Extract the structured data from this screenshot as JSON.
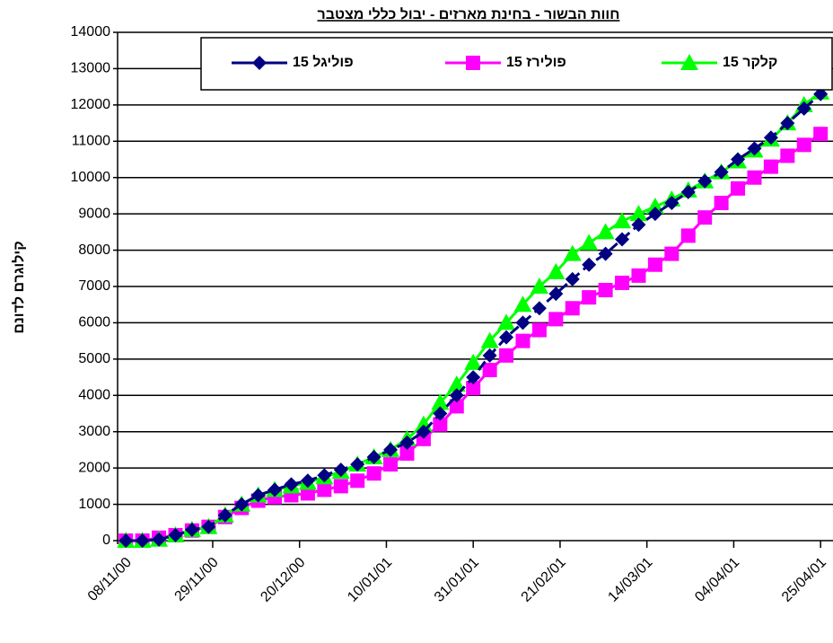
{
  "chart_data": {
    "type": "line",
    "title": "חוות הבשור - בחינת מארזים - יבול כללי מצטבר",
    "y_label": "קילוגרם לדונם",
    "x": [
      "2000-11-08",
      "2000-11-12",
      "2000-11-16",
      "2000-11-20",
      "2000-11-24",
      "2000-11-28",
      "2000-12-02",
      "2000-12-06",
      "2000-12-10",
      "2000-12-14",
      "2000-12-18",
      "2000-12-22",
      "2000-12-26",
      "2000-12-30",
      "2001-01-03",
      "2001-01-07",
      "2001-01-11",
      "2001-01-15",
      "2001-01-19",
      "2001-01-23",
      "2001-01-27",
      "2001-01-31",
      "2001-02-04",
      "2001-02-08",
      "2001-02-12",
      "2001-02-16",
      "2001-02-20",
      "2001-02-24",
      "2001-02-28",
      "2001-03-04",
      "2001-03-08",
      "2001-03-12",
      "2001-03-16",
      "2001-03-20",
      "2001-03-24",
      "2001-03-28",
      "2001-04-01",
      "2001-04-05",
      "2001-04-09",
      "2001-04-13",
      "2001-04-17",
      "2001-04-21",
      "2001-04-25"
    ],
    "series": [
      {
        "name": "פוליגל 15",
        "color": "#000080",
        "marker": "diamond",
        "dashed": true,
        "values": [
          0,
          0,
          30,
          150,
          300,
          380,
          700,
          1000,
          1250,
          1400,
          1550,
          1650,
          1800,
          1950,
          2100,
          2300,
          2500,
          2700,
          3000,
          3500,
          4000,
          4500,
          5100,
          5600,
          6000,
          6400,
          6800,
          7200,
          7600,
          7900,
          8300,
          8700,
          9000,
          9300,
          9600,
          9900,
          10150,
          10500,
          10800,
          11100,
          11500,
          11900,
          12300
        ]
      },
      {
        "name": "פולירז 15",
        "color": "#ff00ff",
        "marker": "square",
        "dashed": false,
        "values": [
          0,
          0,
          80,
          150,
          280,
          380,
          650,
          900,
          1100,
          1200,
          1250,
          1300,
          1400,
          1500,
          1650,
          1850,
          2100,
          2400,
          2800,
          3200,
          3700,
          4200,
          4700,
          5100,
          5500,
          5800,
          6100,
          6400,
          6700,
          6900,
          7100,
          7300,
          7600,
          7900,
          8400,
          8900,
          9300,
          9700,
          10000,
          10300,
          10600,
          10900,
          11200
        ]
      },
      {
        "name": "קלקר 15",
        "color": "#00ff00",
        "marker": "triangle",
        "dashed": false,
        "values": [
          0,
          0,
          30,
          150,
          300,
          380,
          700,
          1000,
          1250,
          1400,
          1500,
          1600,
          1750,
          1900,
          2100,
          2300,
          2500,
          2800,
          3200,
          3800,
          4300,
          4900,
          5500,
          6000,
          6500,
          7000,
          7400,
          7900,
          8200,
          8500,
          8800,
          9000,
          9200,
          9400,
          9650,
          9900,
          10150,
          10450,
          10750,
          11050,
          11500,
          12000,
          12350
        ]
      }
    ],
    "xlim": [
      "2000-11-06",
      "2001-04-28"
    ],
    "xticks": [
      {
        "value": "2000-11-08",
        "label": "08/11/00"
      },
      {
        "value": "2000-11-29",
        "label": "29/11/00"
      },
      {
        "value": "2000-12-20",
        "label": "20/12/00"
      },
      {
        "value": "2001-01-10",
        "label": "10/01/01"
      },
      {
        "value": "2001-01-31",
        "label": "31/01/01"
      },
      {
        "value": "2001-02-21",
        "label": "21/02/01"
      },
      {
        "value": "2001-03-14",
        "label": "14/03/01"
      },
      {
        "value": "2001-04-04",
        "label": "04/04/01"
      },
      {
        "value": "2001-04-25",
        "label": "25/04/01"
      }
    ],
    "ylim": [
      0,
      14000
    ],
    "yticks": [
      0,
      1000,
      2000,
      3000,
      4000,
      5000,
      6000,
      7000,
      8000,
      9000,
      10000,
      11000,
      12000,
      13000,
      14000
    ],
    "grid": true
  }
}
